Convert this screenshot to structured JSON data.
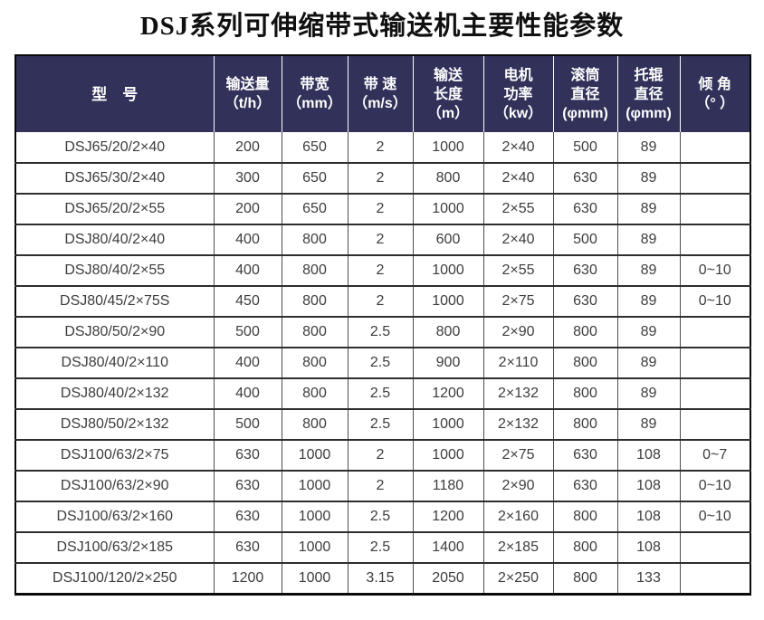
{
  "title": "DSJ系列可伸缩带式输送机主要性能参数",
  "colors": {
    "header_bg": "#31315a",
    "header_text": "#ffffff",
    "body_text": "#3d3d3d",
    "grid_line": "#2e2e2e"
  },
  "table": {
    "columns": [
      {
        "label": "型　号"
      },
      {
        "label": "输送量\n（t/h）"
      },
      {
        "label": "带宽\n（mm）"
      },
      {
        "label": "带 速\n（m/s）"
      },
      {
        "label": "输送\n长度\n（m）"
      },
      {
        "label": "电机\n功率\n（kw）"
      },
      {
        "label": "滚筒\n直径\n(φmm)"
      },
      {
        "label": "托辊\n直径\n(φmm)"
      },
      {
        "label": "倾 角\n（° ）"
      }
    ],
    "rows": [
      [
        "DSJ65/20/2×40",
        "200",
        "650",
        "2",
        "1000",
        "2×40",
        "500",
        "89",
        ""
      ],
      [
        "DSJ65/30/2×40",
        "300",
        "650",
        "2",
        "800",
        "2×40",
        "630",
        "89",
        ""
      ],
      [
        "DSJ65/20/2×55",
        "200",
        "650",
        "2",
        "1000",
        "2×55",
        "630",
        "89",
        ""
      ],
      [
        "DSJ80/40/2×40",
        "400",
        "800",
        "2",
        "600",
        "2×40",
        "500",
        "89",
        ""
      ],
      [
        "DSJ80/40/2×55",
        "400",
        "800",
        "2",
        "1000",
        "2×55",
        "630",
        "89",
        "0~10"
      ],
      [
        "DSJ80/45/2×75S",
        "450",
        "800",
        "2",
        "1000",
        "2×75",
        "630",
        "89",
        "0~10"
      ],
      [
        "DSJ80/50/2×90",
        "500",
        "800",
        "2.5",
        "800",
        "2×90",
        "800",
        "89",
        ""
      ],
      [
        "DSJ80/40/2×110",
        "400",
        "800",
        "2.5",
        "900",
        "2×110",
        "800",
        "89",
        ""
      ],
      [
        "DSJ80/40/2×132",
        "400",
        "800",
        "2.5",
        "1200",
        "2×132",
        "800",
        "89",
        ""
      ],
      [
        "DSJ80/50/2×132",
        "500",
        "800",
        "2.5",
        "1000",
        "2×132",
        "800",
        "89",
        ""
      ],
      [
        "DSJ100/63/2×75",
        "630",
        "1000",
        "2",
        "1000",
        "2×75",
        "630",
        "108",
        "0~7"
      ],
      [
        "DSJ100/63/2×90",
        "630",
        "1000",
        "2",
        "1180",
        "2×90",
        "630",
        "108",
        "0~10"
      ],
      [
        "DSJ100/63/2×160",
        "630",
        "1000",
        "2.5",
        "1200",
        "2×160",
        "800",
        "108",
        "0~10"
      ],
      [
        "DSJ100/63/2×185",
        "630",
        "1000",
        "2.5",
        "1400",
        "2×185",
        "800",
        "108",
        ""
      ],
      [
        "DSJ100/120/2×250",
        "1200",
        "1000",
        "3.15",
        "2050",
        "2×250",
        "800",
        "133",
        ""
      ]
    ]
  }
}
